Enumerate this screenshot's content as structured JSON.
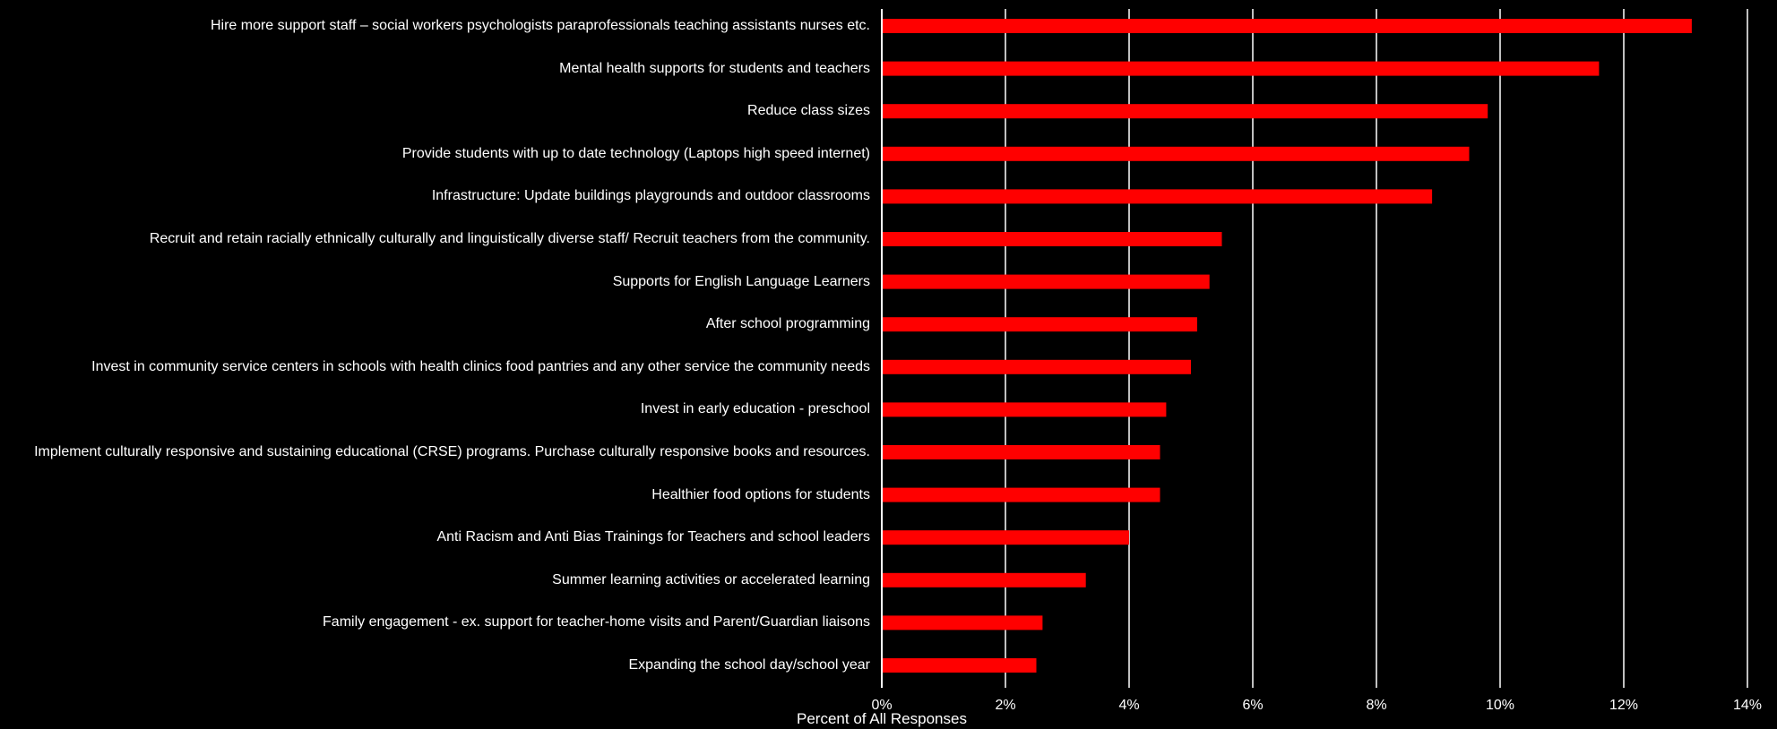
{
  "chart_data": {
    "type": "bar",
    "orientation": "horizontal",
    "categories": [
      "Hire more support staff – social workers psychologists paraprofessionals teaching assistants nurses etc.",
      "Mental health supports for students and teachers",
      "Reduce class sizes",
      "Provide students with up to date technology (Laptops high speed internet)",
      "Infrastructure: Update buildings playgrounds and outdoor classrooms",
      "Recruit and retain racially ethnically culturally and linguistically diverse staff/ Recruit teachers from the community.",
      "Supports for English Language Learners",
      "After school programming",
      "Invest in community service centers in schools with health clinics food pantries and any other service the community needs",
      "Invest in early education - preschool",
      "Implement culturally responsive and sustaining educational (CRSE) programs. Purchase culturally responsive books and resources.",
      "Healthier food options for students",
      "Anti Racism and Anti Bias Trainings for Teachers and school leaders",
      "Summer learning activities or accelerated learning",
      "Family engagement - ex. support for teacher-home visits and Parent/Guardian liaisons",
      "Expanding the school day/school year"
    ],
    "values": [
      13.1,
      11.6,
      9.8,
      9.5,
      8.9,
      5.5,
      5.3,
      5.1,
      5.0,
      4.6,
      4.5,
      4.5,
      4.0,
      3.3,
      2.6,
      2.5
    ],
    "xlim": [
      0,
      14
    ],
    "x_ticks": [
      "0%",
      "2%",
      "4%",
      "6%",
      "8%",
      "10%",
      "12%",
      "14%"
    ],
    "xlabel": "Percent of All Responses",
    "ylabel": "",
    "title": "",
    "grid": "vertical",
    "colors": {
      "bar": "#ff0000",
      "background": "#000000",
      "grid": "#ffffff",
      "text": "#ffffff"
    }
  }
}
